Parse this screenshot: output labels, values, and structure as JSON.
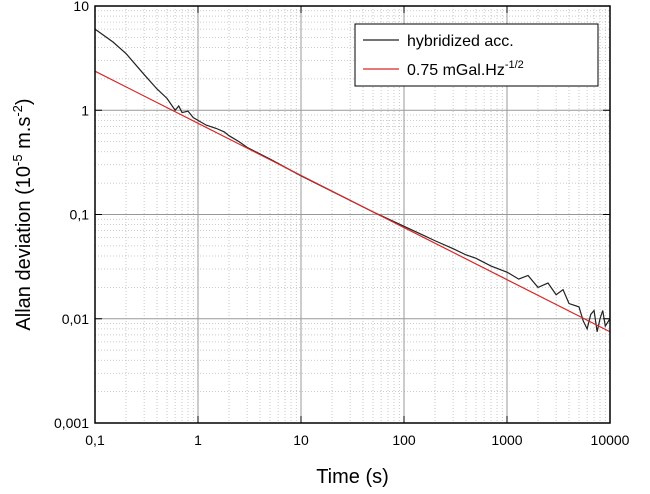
{
  "chart_data": {
    "type": "line",
    "x_label": "Time (s)",
    "y_label": [
      "Allan deviation (10",
      "-5",
      " m.s",
      "-2",
      ")"
    ],
    "log_x": true,
    "log_y": true,
    "grid": true,
    "legend": "upper right",
    "xlim": [
      0.1,
      10000
    ],
    "xticks": [
      {
        "value": 0.1,
        "label": "0,1"
      },
      1,
      10,
      100,
      1000,
      10000
    ],
    "ylim": [
      0.001,
      10
    ],
    "yticks": [
      {
        "value": 0.001,
        "label": "0,001"
      },
      {
        "value": 0.01,
        "label": "0,01"
      },
      {
        "value": 0.1,
        "label": "0,1"
      },
      1,
      10
    ],
    "series": [
      {
        "name": "hybridized acc.",
        "color": "#222222",
        "x": [
          0.1,
          0.15,
          0.2,
          0.3,
          0.4,
          0.5,
          0.6,
          0.65,
          0.7,
          0.8,
          0.9,
          1,
          1.2,
          1.5,
          1.8,
          2,
          2.5,
          3,
          5,
          10,
          20,
          50,
          100,
          150,
          200,
          300,
          400,
          500,
          700,
          1000,
          1300,
          1600,
          2000,
          2500,
          3000,
          3500,
          4000,
          5000,
          5500,
          6000,
          6500,
          7000,
          7500,
          8000,
          8500,
          9000,
          10000
        ],
        "values": [
          6,
          4.5,
          3.5,
          2.2,
          1.6,
          1.3,
          1.0,
          1.1,
          0.95,
          0.98,
          0.85,
          0.8,
          0.72,
          0.67,
          0.62,
          0.57,
          0.5,
          0.44,
          0.34,
          0.235,
          0.167,
          0.106,
          0.077,
          0.064,
          0.056,
          0.047,
          0.041,
          0.038,
          0.032,
          0.028,
          0.024,
          0.026,
          0.02,
          0.022,
          0.017,
          0.019,
          0.014,
          0.013,
          0.0095,
          0.008,
          0.011,
          0.012,
          0.0075,
          0.01,
          0.012,
          0.0085,
          0.01
        ]
      },
      {
        "name": "0.75 mGal.Hz",
        "name_sup": "-1/2",
        "color": "#d62728",
        "x": [
          0.1,
          10000
        ],
        "values": [
          2.37,
          0.0075
        ]
      }
    ]
  }
}
